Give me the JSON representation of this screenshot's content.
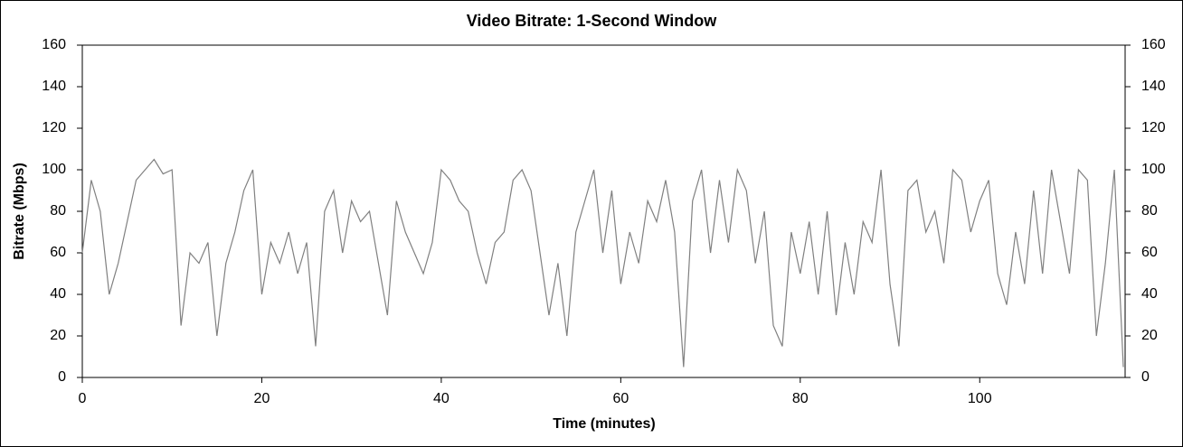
{
  "chart_data": {
    "type": "line",
    "title": "Video Bitrate: 1-Second Window",
    "xlabel": "Time (minutes)",
    "ylabel": "Bitrate (Mbps)",
    "x": [
      0,
      1,
      2,
      3,
      4,
      5,
      6,
      7,
      8,
      9,
      10,
      11,
      12,
      13,
      14,
      15,
      16,
      17,
      18,
      19,
      20,
      21,
      22,
      23,
      24,
      25,
      26,
      27,
      28,
      29,
      30,
      31,
      32,
      33,
      34,
      35,
      36,
      37,
      38,
      39,
      40,
      41,
      42,
      43,
      44,
      45,
      46,
      47,
      48,
      49,
      50,
      51,
      52,
      53,
      54,
      55,
      56,
      57,
      58,
      59,
      60,
      61,
      62,
      63,
      64,
      65,
      66,
      67,
      68,
      69,
      70,
      71,
      72,
      73,
      74,
      75,
      76,
      77,
      78,
      79,
      80,
      81,
      82,
      83,
      84,
      85,
      86,
      87,
      88,
      89,
      90,
      91,
      92,
      93,
      94,
      95,
      96,
      97,
      98,
      99,
      100,
      101,
      102,
      103,
      104,
      105,
      106,
      107,
      108,
      109,
      110,
      111,
      112,
      113,
      114,
      115,
      116
    ],
    "series": [
      {
        "name": "Bitrate",
        "color": "#808080",
        "values": [
          60,
          95,
          80,
          40,
          55,
          75,
          95,
          100,
          105,
          98,
          100,
          25,
          60,
          55,
          65,
          20,
          55,
          70,
          90,
          100,
          40,
          65,
          55,
          70,
          50,
          65,
          15,
          80,
          90,
          60,
          85,
          75,
          80,
          55,
          30,
          85,
          70,
          60,
          50,
          65,
          100,
          95,
          85,
          80,
          60,
          45,
          65,
          70,
          95,
          100,
          90,
          60,
          30,
          55,
          20,
          70,
          85,
          100,
          60,
          90,
          45,
          70,
          55,
          85,
          75,
          95,
          70,
          5,
          85,
          100,
          60,
          95,
          65,
          100,
          90,
          55,
          80,
          25,
          15,
          70,
          50,
          75,
          40,
          80,
          30,
          65,
          40,
          75,
          65,
          100,
          45,
          15,
          90,
          95,
          70,
          80,
          55,
          100,
          95,
          70,
          85,
          95,
          50,
          35,
          70,
          45,
          90,
          50,
          100,
          75,
          50,
          100,
          95,
          20,
          55,
          100,
          5
        ]
      }
    ],
    "xlim": [
      0,
      116.2
    ],
    "ylim": [
      0,
      160
    ],
    "y2lim": [
      0,
      160
    ],
    "xticks": [
      0,
      20,
      40,
      60,
      80,
      100
    ],
    "yticks": [
      0,
      20,
      40,
      60,
      80,
      100,
      120,
      140,
      160
    ],
    "y2ticks": [
      0,
      20,
      40,
      60,
      80,
      100,
      120,
      140,
      160
    ]
  }
}
